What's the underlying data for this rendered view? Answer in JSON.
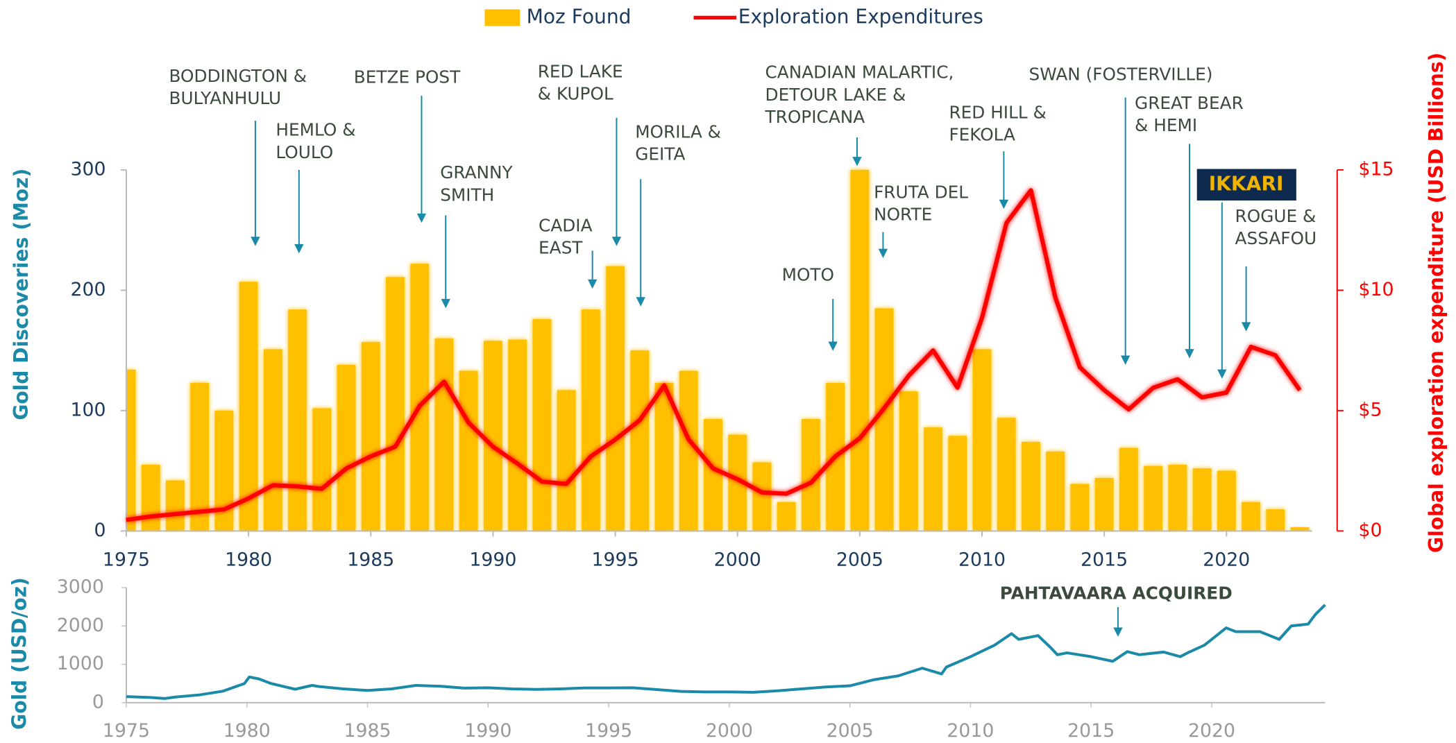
{
  "chart_data": [
    {
      "type": "bar",
      "x": [
        1975,
        1976,
        1977,
        1978,
        1979,
        1980,
        1981,
        1982,
        1983,
        1984,
        1985,
        1986,
        1987,
        1988,
        1989,
        1990,
        1991,
        1992,
        1993,
        1994,
        1995,
        1996,
        1997,
        1998,
        1999,
        2000,
        2001,
        2002,
        2003,
        2004,
        2005,
        2006,
        2007,
        2008,
        2009,
        2010,
        2011,
        2012,
        2013,
        2014,
        2015,
        2016,
        2017,
        2018,
        2019,
        2020,
        2021,
        2022,
        2023
      ],
      "series": [
        {
          "name": "Moz Found",
          "color": "#ffc000",
          "values": [
            134,
            55,
            42,
            123,
            100,
            207,
            151,
            184,
            102,
            138,
            157,
            211,
            222,
            160,
            133,
            158,
            159,
            176,
            117,
            184,
            220,
            150,
            123,
            133,
            93,
            80,
            57,
            24,
            93,
            123,
            300,
            185,
            116,
            86,
            79,
            151,
            94,
            74,
            66,
            39,
            44,
            69,
            54,
            55,
            52,
            50,
            24,
            18,
            3
          ]
        },
        {
          "name": "Exploration Expenditures",
          "color": "#ff0000",
          "axis": "y2",
          "type": "line",
          "values": [
            0.46,
            0.6,
            0.7,
            0.8,
            0.9,
            1.35,
            1.9,
            1.85,
            1.75,
            2.6,
            3.1,
            3.5,
            5.2,
            6.2,
            4.5,
            3.5,
            2.8,
            2.05,
            1.95,
            3.1,
            3.8,
            4.6,
            6.05,
            3.8,
            2.6,
            2.15,
            1.6,
            1.55,
            2.0,
            3.1,
            3.85,
            5.1,
            6.45,
            7.5,
            5.95,
            8.85,
            12.8,
            14.15,
            9.7,
            6.8,
            5.85,
            5.05,
            5.95,
            6.3,
            5.55,
            5.75,
            7.65,
            7.3,
            5.85
          ]
        }
      ],
      "xlim": [
        1975,
        2023.5
      ],
      "xticks": [
        1975,
        1980,
        1985,
        1990,
        1995,
        2000,
        2005,
        2010,
        2015,
        2020
      ],
      "ylim": [
        0,
        300
      ],
      "yticks": [
        0,
        100,
        200,
        300
      ],
      "y2lim": [
        0,
        15
      ],
      "y2ticks": [
        {
          "value": 0,
          "label": "$0"
        },
        {
          "value": 5,
          "label": "$5"
        },
        {
          "value": 10,
          "label": "$10"
        },
        {
          "value": 15,
          "label": "$15"
        }
      ],
      "ylabel": "Gold Discoveries (Moz)",
      "y2label": "Global exploration expenditure (USD Billions)",
      "annotations": [
        {
          "lines": [
            "BODDINGTON &",
            "BULYANHULU"
          ]
        },
        {
          "lines": [
            "HEMLO &",
            "LOULO"
          ]
        },
        {
          "lines": [
            "BETZE POST"
          ]
        },
        {
          "lines": [
            "GRANNY",
            "SMITH"
          ]
        },
        {
          "lines": [
            "RED LAKE",
            "& KUPOL"
          ]
        },
        {
          "lines": [
            "CADIA",
            "EAST"
          ]
        },
        {
          "lines": [
            "MORILA &",
            "GEITA"
          ]
        },
        {
          "lines": [
            "CANADIAN MALARTIC,",
            "DETOUR LAKE &",
            "TROPICANA"
          ]
        },
        {
          "lines": [
            "MOTO"
          ]
        },
        {
          "lines": [
            "FRUTA DEL",
            "NORTE"
          ]
        },
        {
          "lines": [
            "RED HILL &",
            "FEKOLA"
          ]
        },
        {
          "lines": [
            "SWAN (FOSTERVILLE)"
          ]
        },
        {
          "lines": [
            "GREAT BEAR",
            "& HEMI"
          ]
        },
        {
          "lines": [
            "IKKARI"
          ]
        },
        {
          "lines": [
            "ROGUE &",
            "ASSAFOU"
          ]
        }
      ]
    },
    {
      "type": "line",
      "x": [
        1975,
        1976,
        1976.6,
        1977,
        1978,
        1979,
        1979.9,
        1980.1,
        1980.5,
        1981,
        1982,
        1982.7,
        1983,
        1984,
        1985,
        1986,
        1987,
        1988,
        1989,
        1990,
        1991,
        1992,
        1993,
        1994,
        1995,
        1996,
        1997,
        1998,
        1999,
        2000,
        2001,
        2002,
        2003,
        2004,
        2005,
        2006,
        2007,
        2008,
        2008.8,
        2009,
        2010,
        2011,
        2011.7,
        2012,
        2012.8,
        2013.3,
        2013.6,
        2014,
        2015,
        2015.9,
        2016.5,
        2017,
        2018,
        2018.7,
        2019,
        2019.7,
        2020.6,
        2021,
        2022,
        2022.8,
        2023.3,
        2024,
        2024.3,
        2024.7
      ],
      "series": [
        {
          "color": "#1a8aa8",
          "values": [
            160,
            135,
            110,
            145,
            200,
            300,
            500,
            670,
            620,
            500,
            350,
            450,
            420,
            360,
            320,
            360,
            450,
            430,
            380,
            390,
            360,
            345,
            360,
            385,
            385,
            390,
            340,
            295,
            280,
            280,
            270,
            310,
            360,
            410,
            440,
            600,
            700,
            900,
            750,
            930,
            1200,
            1500,
            1800,
            1650,
            1750,
            1450,
            1250,
            1300,
            1200,
            1080,
            1330,
            1250,
            1320,
            1200,
            1300,
            1500,
            1950,
            1850,
            1850,
            1650,
            2000,
            2050,
            2300,
            2550
          ]
        }
      ],
      "xlim": [
        1975,
        2024.7
      ],
      "xticks": [
        1975,
        1980,
        1985,
        1990,
        1995,
        2000,
        2005,
        2010,
        2015,
        2020
      ],
      "ylim": [
        0,
        3000
      ],
      "yticks": [
        0,
        1000,
        2000,
        3000
      ],
      "ylabel": "Gold (USD/oz)",
      "annotations": [
        {
          "lines": [
            "PAHTAVAARA ACQUIRED"
          ]
        }
      ]
    }
  ]
}
